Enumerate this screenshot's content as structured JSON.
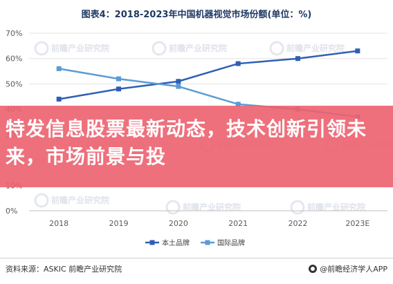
{
  "title": "图表4：2018-2023年中国机器视觉市场份额(单位：%)",
  "chart_data": {
    "type": "line",
    "title": "图表4：2018-2023年中国机器视觉市场份额(单位：%)",
    "categories": [
      "2018",
      "2019",
      "2020",
      "2021",
      "2022",
      "2023E"
    ],
    "series": [
      {
        "name": "本土品牌",
        "color": "#2e5fb5",
        "values": [
          44,
          48,
          51,
          58,
          60,
          63
        ]
      },
      {
        "name": "国际品牌",
        "color": "#5b9bd5",
        "values": [
          56,
          52,
          49,
          42,
          40,
          37
        ]
      }
    ],
    "yticks": [
      "0%",
      "10%",
      "20%",
      "30%",
      "40%",
      "50%",
      "60%",
      "70%"
    ],
    "ylim": [
      0,
      70
    ],
    "grid": true,
    "legend_position": "bottom"
  },
  "watermark": "前瞻产业研究院",
  "banner": {
    "text": "特发信息股票最新动态，技术创新引领未来，市场前景与投",
    "color": "#ec606e"
  },
  "footer": {
    "source": "资料来源：ASKIC 前瞻产业研究院",
    "brand": "@前瞻经济学人APP"
  }
}
